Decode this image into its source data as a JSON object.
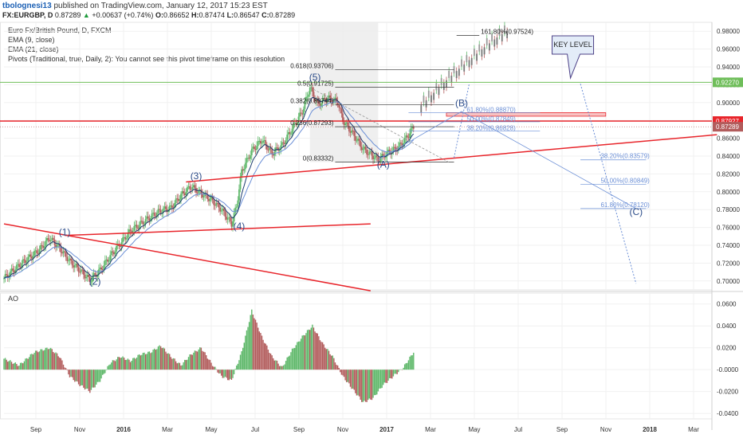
{
  "header": {
    "publisher": "tbolognesi13",
    "published_text": " published on TradingView.com, January 12, 2017 15:23 EST",
    "symbol": "FX:EURGBP, D",
    "last": "0.87289",
    "change": "+0.00637 (+0.74%)",
    "o_label": "O:",
    "o": "0.86652",
    "h_label": "H:",
    "h": "0.87474",
    "l_label": "L:",
    "l": "0.86547",
    "c_label": "C:",
    "c": "0.87289"
  },
  "legend": {
    "title": "Euro Fx/British Pound, D, FXCM",
    "ema9": "EMA (9, close)",
    "ema21": "EMA (21, close)",
    "pivots": "Pivots (Traditional, true, Daily, 2): You cannot see this pivot timeframe on this resolution"
  },
  "colors": {
    "up": "#5fb86a",
    "down": "#b25c5c",
    "ema9": "#1c3b6e",
    "ema21": "#6b8fd6",
    "trend": "#e8252b",
    "green": "#6fbe5a",
    "fib": "#6b8fd6",
    "blue_label": "#2d4d8a"
  },
  "chart_data": [
    {
      "type": "candlestick",
      "ylim": [
        0.69,
        0.99
      ],
      "y_ticks": [
        "0.98000",
        "0.96000",
        "0.94000",
        "0.92000",
        "0.90000",
        "0.88000",
        "0.86000",
        "0.84000",
        "0.82000",
        "0.80000",
        "0.78000",
        "0.76000",
        "0.74000",
        "0.72000",
        "0.70000"
      ],
      "x_ticks": [
        "Sep",
        "Nov",
        "2016",
        "Mar",
        "May",
        "Jul",
        "Sep",
        "Nov",
        "2017",
        "Mar",
        "May",
        "Jul",
        "Sep",
        "Nov",
        "2018",
        "Mar"
      ],
      "price_labels": [
        {
          "value": "0.92270",
          "y": 0.9227,
          "color": "#6fbe5a"
        },
        {
          "value": "0.87927",
          "y": 0.87927,
          "color": "#e8252b"
        },
        {
          "value": "0.87289",
          "y": 0.87289,
          "color": "#b25c5c"
        }
      ],
      "path_points": [
        [
          0,
          0.703
        ],
        [
          4,
          0.713
        ],
        [
          8,
          0.722
        ],
        [
          14,
          0.735
        ],
        [
          18,
          0.748
        ],
        [
          22,
          0.737
        ],
        [
          26,
          0.722
        ],
        [
          30,
          0.712
        ],
        [
          34,
          0.701
        ],
        [
          38,
          0.712
        ],
        [
          42,
          0.728
        ],
        [
          46,
          0.742
        ],
        [
          50,
          0.756
        ],
        [
          54,
          0.764
        ],
        [
          58,
          0.772
        ],
        [
          62,
          0.779
        ],
        [
          66,
          0.782
        ],
        [
          70,
          0.796
        ],
        [
          74,
          0.806
        ],
        [
          78,
          0.798
        ],
        [
          82,
          0.791
        ],
        [
          86,
          0.78
        ],
        [
          90,
          0.764
        ],
        [
          92,
          0.784
        ],
        [
          94,
          0.823
        ],
        [
          98,
          0.846
        ],
        [
          102,
          0.858
        ],
        [
          106,
          0.843
        ],
        [
          110,
          0.852
        ],
        [
          114,
          0.871
        ],
        [
          118,
          0.89
        ],
        [
          120,
          0.908
        ],
        [
          121,
          0.917
        ],
        [
          124,
          0.898
        ],
        [
          128,
          0.905
        ],
        [
          132,
          0.901
        ],
        [
          134,
          0.88
        ],
        [
          138,
          0.865
        ],
        [
          142,
          0.848
        ],
        [
          146,
          0.84
        ],
        [
          148,
          0.836
        ],
        [
          152,
          0.844
        ],
        [
          156,
          0.85
        ],
        [
          159,
          0.86
        ],
        [
          161,
          0.868
        ],
        [
          162,
          0.873
        ]
      ],
      "projection_points": [
        [
          165,
          0.897
        ],
        [
          170,
          0.911
        ],
        [
          175,
          0.925
        ],
        [
          180,
          0.938
        ],
        [
          185,
          0.95
        ],
        [
          190,
          0.962
        ],
        [
          195,
          0.973
        ],
        [
          200,
          0.982
        ]
      ],
      "wave_labels": [
        {
          "text": "(1)",
          "x": 24,
          "y": 0.751
        },
        {
          "text": "(2)",
          "x": 36,
          "y": 0.696
        },
        {
          "text": "(3)",
          "x": 76,
          "y": 0.814
        },
        {
          "text": "(4)",
          "x": 93,
          "y": 0.758
        },
        {
          "text": "(5)",
          "x": 123,
          "y": 0.925
        },
        {
          "text": "(A)",
          "x": 150,
          "y": 0.827
        },
        {
          "text": "(B)",
          "x": 181,
          "y": 0.896
        },
        {
          "text": "(C)",
          "x": 250,
          "y": 0.774
        }
      ],
      "fib_retracement": [
        {
          "label": "161.80%(0.97524)",
          "y": 0.97524
        },
        {
          "label": "0.618(0.93706)",
          "y": 0.93706
        },
        {
          "label": "0.5(0.91725)",
          "y": 0.91725
        },
        {
          "label": "0.382(0.89744)",
          "y": 0.89744
        },
        {
          "label": "0.236(0.87293)",
          "y": 0.87293
        },
        {
          "label": "0(0.83332)",
          "y": 0.83332
        }
      ],
      "fib_upper": [
        {
          "label": "61.80%(0.88870)",
          "y": 0.8887
        },
        {
          "label": "50.00%(0.87849)",
          "y": 0.87849
        },
        {
          "label": "38.20%(0.86828)",
          "y": 0.86828
        }
      ],
      "fib_lower": [
        {
          "label": "38.20%(0.83579)",
          "y": 0.83579
        },
        {
          "label": "50.00%(0.80849)",
          "y": 0.80849
        },
        {
          "label": "61.80%(0.78120)",
          "y": 0.7812
        }
      ],
      "horizontal_lines": [
        {
          "name": "green-level",
          "y": 0.9227
        },
        {
          "name": "red-level",
          "y": 0.87927
        }
      ],
      "callout": "KEY LEVEL"
    },
    {
      "type": "bar",
      "title": "AO",
      "ylim": [
        -0.045,
        0.07
      ],
      "y_ticks": [
        "0.0600",
        "0.0400",
        "0.0200",
        "-0.0000",
        "-0.0200",
        "-0.0400"
      ],
      "ao_profile": [
        [
          0,
          0.01
        ],
        [
          6,
          0.004
        ],
        [
          12,
          0.016
        ],
        [
          18,
          0.02
        ],
        [
          22,
          0.012
        ],
        [
          26,
          -0.006
        ],
        [
          30,
          -0.014
        ],
        [
          34,
          -0.02
        ],
        [
          38,
          -0.01
        ],
        [
          42,
          0.006
        ],
        [
          46,
          0.012
        ],
        [
          50,
          0.008
        ],
        [
          54,
          0.014
        ],
        [
          58,
          0.016
        ],
        [
          62,
          0.022
        ],
        [
          66,
          0.012
        ],
        [
          70,
          0.004
        ],
        [
          74,
          0.014
        ],
        [
          78,
          0.02
        ],
        [
          82,
          0.006
        ],
        [
          86,
          -0.006
        ],
        [
          90,
          -0.01
        ],
        [
          94,
          0.016
        ],
        [
          98,
          0.054
        ],
        [
          102,
          0.03
        ],
        [
          106,
          0.012
        ],
        [
          110,
          0.002
        ],
        [
          114,
          0.018
        ],
        [
          118,
          0.03
        ],
        [
          122,
          0.04
        ],
        [
          126,
          0.024
        ],
        [
          130,
          0.012
        ],
        [
          134,
          -0.006
        ],
        [
          138,
          -0.018
        ],
        [
          142,
          -0.03
        ],
        [
          146,
          -0.026
        ],
        [
          150,
          -0.014
        ],
        [
          154,
          -0.006
        ],
        [
          158,
          0.002
        ],
        [
          162,
          0.016
        ]
      ]
    }
  ]
}
